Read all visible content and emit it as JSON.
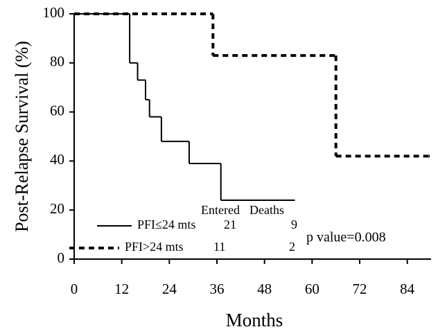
{
  "chart_data": {
    "type": "step",
    "y_label": "Post-Relapse Survival (%)",
    "x_label": "Months",
    "xlim": [
      0,
      90
    ],
    "xticks": [
      0,
      12,
      24,
      36,
      48,
      60,
      72,
      84
    ],
    "ylim": [
      0,
      100
    ],
    "yticks": [
      0,
      20,
      40,
      60,
      80,
      100
    ],
    "legend_header": [
      "Entered",
      "Deaths"
    ],
    "series": [
      {
        "name": "PFI≤24 mts",
        "color": "#000000",
        "dash": false,
        "entered": 21,
        "deaths": 9,
        "x": [
          0,
          14,
          16,
          18,
          19,
          22,
          29,
          37,
          55.5
        ],
        "values": [
          100,
          80,
          73,
          65,
          58,
          48,
          39,
          24,
          24
        ]
      },
      {
        "name": "PFI>24 mts",
        "color": "#000000",
        "dash": true,
        "entered": 11,
        "deaths": 2,
        "x": [
          0,
          35,
          66,
          89.5
        ],
        "values": [
          100,
          83,
          42,
          42
        ]
      }
    ],
    "annotation": "p value=0.008"
  }
}
